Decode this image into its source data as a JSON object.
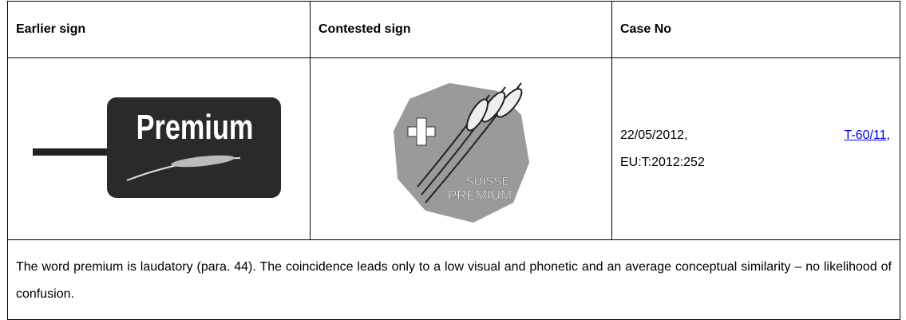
{
  "table": {
    "header": [
      "Earlier sign",
      "Contested sign",
      "Case No"
    ],
    "earlier_sign": {
      "text": "Premium"
    },
    "contested_sign": {
      "lines": [
        "SUISSE",
        "PREMIUM"
      ]
    },
    "case": {
      "date": "22/05/2012,",
      "case_number": "T-60/11",
      "separator": ",",
      "ecli": "EU:T:2012:252"
    },
    "note": "The word premium is laudatory (para. 44). The coincidence leads only to a low visual and phonetic and an average conceptual similarity – no likelihood of confusion."
  }
}
